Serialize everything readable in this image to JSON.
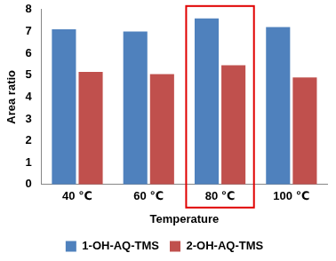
{
  "chart_data": {
    "type": "bar",
    "categories": [
      "40 ℃",
      "60 ℃",
      "80 ℃",
      "100 ℃"
    ],
    "series": [
      {
        "name": "1-OH-AQ-TMS",
        "color": "#4f81bd",
        "values": [
          7.1,
          7.0,
          7.6,
          7.2
        ]
      },
      {
        "name": "2-OH-AQ-TMS",
        "color": "#c0504d",
        "values": [
          5.15,
          5.05,
          5.45,
          4.9
        ]
      }
    ],
    "x_label": "Temperature",
    "y_label": "Area ratio",
    "ylim": [
      0,
      8
    ],
    "yticks": [
      0,
      1,
      2,
      3,
      4,
      5,
      6,
      7,
      8
    ],
    "grid": false,
    "legend": "bottom"
  }
}
